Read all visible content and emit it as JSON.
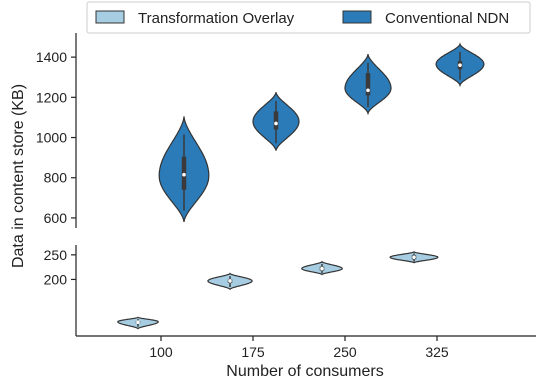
{
  "chart_data": {
    "type": "violin",
    "xlabel": "Number of consumers",
    "ylabel": "Data in content store (KB)",
    "categories": [
      "100",
      "175",
      "250",
      "325"
    ],
    "y_axis": "broken",
    "upper_panel": {
      "ylim": [
        550,
        1520
      ],
      "ticks": [
        600,
        800,
        1000,
        1200,
        1400
      ]
    },
    "lower_panel": {
      "ylim": [
        85,
        270
      ],
      "ticks": [
        200,
        250
      ]
    },
    "legend": {
      "placement": "top-center"
    },
    "grid": false,
    "series": [
      {
        "name": "Transformation Overlay",
        "color": "#a6cde2",
        "panel": "lower",
        "violins": [
          {
            "category": "100",
            "min": 100,
            "max": 123,
            "q1": 111,
            "median": 113,
            "q3": 115,
            "peak": 114,
            "max_width": 0.22
          },
          {
            "category": "175",
            "min": 180,
            "max": 212,
            "q1": 193,
            "median": 197,
            "q3": 200,
            "peak": 197,
            "max_width": 0.24
          },
          {
            "category": "250",
            "min": 210,
            "max": 236,
            "q1": 218,
            "median": 222,
            "q3": 226,
            "peak": 222,
            "max_width": 0.22
          },
          {
            "category": "325",
            "min": 234,
            "max": 256,
            "q1": 241,
            "median": 245,
            "q3": 249,
            "peak": 245,
            "max_width": 0.26
          }
        ]
      },
      {
        "name": "Conventional NDN",
        "color": "#2b7bb9",
        "panel": "upper",
        "violins": [
          {
            "category": "100",
            "min": 580,
            "max": 1105,
            "q1": 740,
            "median": 815,
            "q3": 905,
            "peak": 810,
            "max_width": 0.27
          },
          {
            "category": "175",
            "min": 935,
            "max": 1225,
            "q1": 1040,
            "median": 1070,
            "q3": 1130,
            "peak": 1080,
            "max_width": 0.25
          },
          {
            "category": "250",
            "min": 1120,
            "max": 1415,
            "q1": 1210,
            "median": 1235,
            "q3": 1320,
            "peak": 1245,
            "max_width": 0.25
          },
          {
            "category": "325",
            "min": 1260,
            "max": 1465,
            "q1": 1340,
            "median": 1360,
            "q3": 1380,
            "peak": 1365,
            "max_width": 0.26
          }
        ]
      }
    ]
  }
}
